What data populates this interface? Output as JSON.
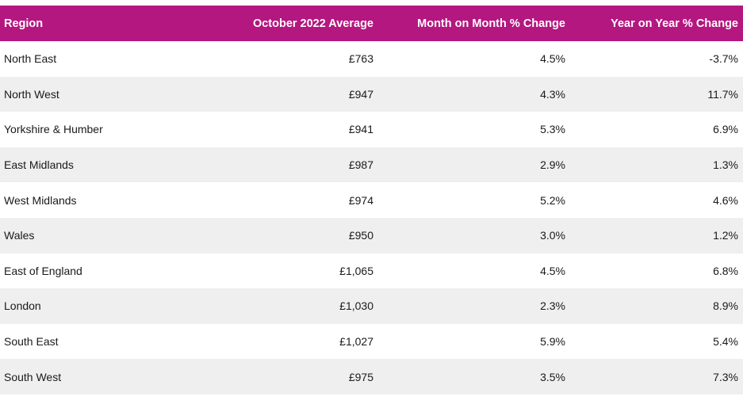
{
  "table": {
    "headers": [
      "Region",
      "October 2022 Average",
      "Month on Month % Change",
      "Year on Year % Change"
    ],
    "rows": [
      [
        "North East",
        "£763",
        "4.5%",
        "-3.7%"
      ],
      [
        "North West",
        "£947",
        "4.3%",
        "11.7%"
      ],
      [
        "Yorkshire & Humber",
        "£941",
        "5.3%",
        "6.9%"
      ],
      [
        "East Midlands",
        "£987",
        "2.9%",
        "1.3%"
      ],
      [
        "West Midlands",
        "£974",
        "5.2%",
        "4.6%"
      ],
      [
        "Wales",
        "£950",
        "3.0%",
        "1.2%"
      ],
      [
        "East of England",
        "£1,065",
        "4.5%",
        "6.8%"
      ],
      [
        "London",
        "£1,030",
        "2.3%",
        "8.9%"
      ],
      [
        "South East",
        "£1,027",
        "5.9%",
        "5.4%"
      ],
      [
        "South West",
        "£975",
        "3.5%",
        "7.3%"
      ]
    ]
  },
  "colors": {
    "header_background": "#b4177f",
    "header_text": "#ffffff",
    "row_alt_background": "#efefef"
  }
}
